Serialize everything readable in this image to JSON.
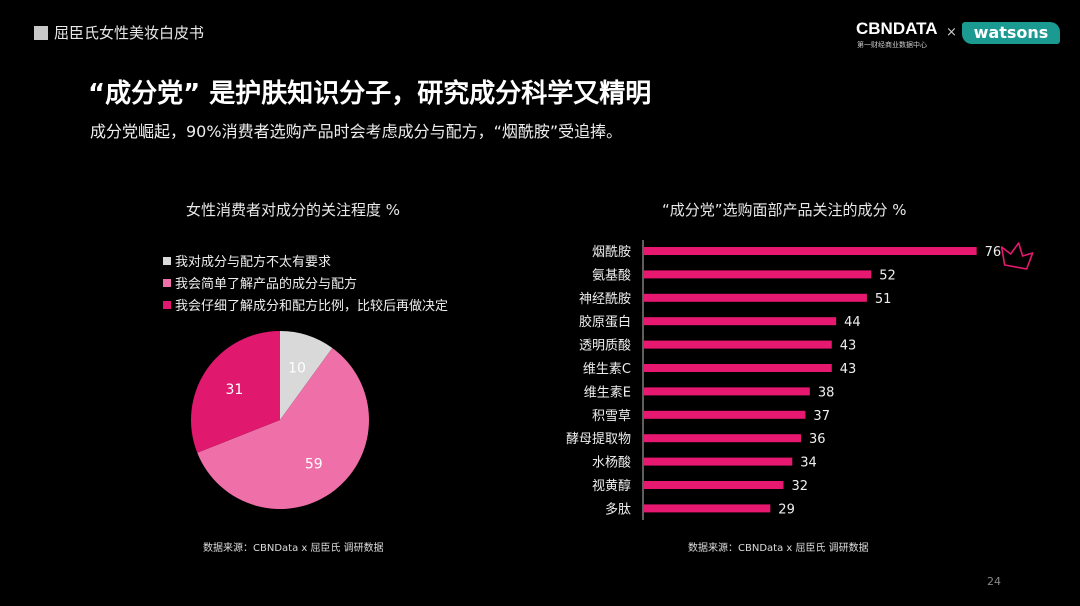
{
  "header": {
    "title": "屈臣氏女性美妆白皮书"
  },
  "logos": {
    "cbndata": "CBNDATA",
    "cbndata_sub": "第一财经商业数据中心",
    "separator": "×",
    "watsons": "watsons"
  },
  "main_title": "“成分党” 是护肤知识分子，研究成分科学又精明",
  "subtitle": "成分党崛起，90%消费者选购产品时会考虑成分与配方，“烟酰胺”受追捧。",
  "page_number": "24",
  "colors": {
    "background": "#000000",
    "light_gray": "#d9d9d9",
    "pink": "#ef6fa8",
    "magenta": "#e0186e",
    "bar": "#e6186f"
  },
  "chart_data": [
    {
      "type": "pie",
      "title": "女性消费者对成分的关注程度 %",
      "legend_position": "top",
      "slices": [
        {
          "label": "我对成分与配方不太有要求",
          "value": 10,
          "color": "#d9d9d9"
        },
        {
          "label": "我会简单了解产品的成分与配方",
          "value": 59,
          "color": "#ef6fa8"
        },
        {
          "label": "我会仔细了解成分和配方比例，比较后再做决定",
          "value": 31,
          "color": "#e0186e"
        }
      ],
      "source": "数据来源：CBNData x  屈臣氏 调研数据"
    },
    {
      "type": "bar",
      "orientation": "horizontal",
      "title": "“成分党”选购面部产品关注的成分 %",
      "categories": [
        "烟酰胺",
        "氨基酸",
        "神经酰胺",
        "胶原蛋白",
        "透明质酸",
        "维生素C",
        "维生素E",
        "积雪草",
        "酵母提取物",
        "水杨酸",
        "视黄醇",
        "多肽"
      ],
      "values": [
        76,
        52,
        51,
        44,
        43,
        43,
        38,
        37,
        36,
        34,
        32,
        29
      ],
      "highlight": {
        "category": "烟酰胺",
        "icon": "crown-icon"
      },
      "source": "数据来源：CBNData x  屈臣氏 调研数据"
    }
  ]
}
